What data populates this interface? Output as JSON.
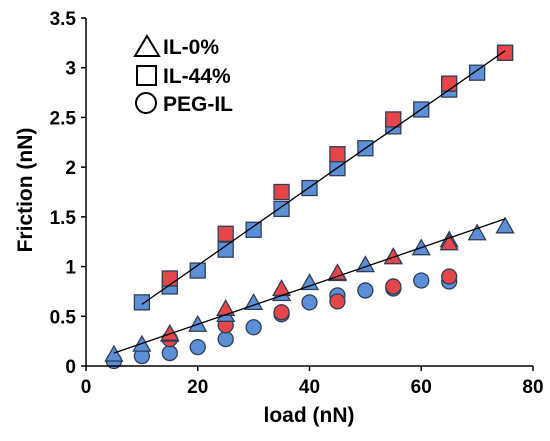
{
  "chart_data": {
    "type": "scatter",
    "xlabel": "load (nN)",
    "ylabel": "Friction (nN)",
    "xlim": [
      0,
      80
    ],
    "ylim": [
      0,
      3.5
    ],
    "xticks": [
      "0",
      "20",
      "40",
      "60",
      "80"
    ],
    "yticks": [
      "0",
      "0.5",
      "1",
      "1.5",
      "2",
      "2.5",
      "3",
      "3.5"
    ],
    "grid": false,
    "legend_position": "top-left",
    "legend": [
      {
        "label": "IL-0%",
        "marker": "triangle"
      },
      {
        "label": "IL-44%",
        "marker": "square"
      },
      {
        "label": "PEG-IL",
        "marker": "circle"
      }
    ],
    "colors": {
      "blue": "#5b8fd6",
      "red": "#e8454a",
      "edge": "#2f3d55"
    },
    "series": [
      {
        "marker": "square",
        "color": "blue",
        "x": [
          10,
          15,
          20,
          25,
          30,
          35,
          40,
          45,
          50,
          55,
          60,
          65,
          70,
          75
        ],
        "y": [
          0.64,
          0.8,
          0.96,
          1.17,
          1.37,
          1.58,
          1.79,
          1.99,
          2.19,
          2.41,
          2.58,
          2.78,
          2.95,
          3.15
        ]
      },
      {
        "marker": "square",
        "color": "red",
        "x": [
          15,
          25,
          35,
          45,
          55,
          65,
          75
        ],
        "y": [
          0.88,
          1.33,
          1.75,
          2.13,
          2.48,
          2.84,
          3.15
        ]
      },
      {
        "marker": "triangle",
        "color": "blue",
        "x": [
          5,
          10,
          15,
          20,
          25,
          30,
          35,
          40,
          45,
          50,
          55,
          60,
          65,
          70,
          75
        ],
        "y": [
          0.12,
          0.22,
          0.32,
          0.42,
          0.52,
          0.64,
          0.73,
          0.84,
          0.93,
          1.02,
          1.1,
          1.19,
          1.27,
          1.34,
          1.41
        ]
      },
      {
        "marker": "triangle",
        "color": "red",
        "x": [
          15,
          25,
          35,
          45,
          55,
          65
        ],
        "y": [
          0.33,
          0.58,
          0.78,
          0.94,
          1.1,
          1.24
        ]
      },
      {
        "marker": "circle",
        "color": "blue",
        "x": [
          5,
          10,
          15,
          20,
          25,
          30,
          35,
          40,
          45,
          50,
          55,
          60,
          65
        ],
        "y": [
          0.05,
          0.1,
          0.13,
          0.19,
          0.27,
          0.39,
          0.52,
          0.64,
          0.71,
          0.76,
          0.78,
          0.86,
          0.85
        ]
      },
      {
        "marker": "circle",
        "color": "red",
        "x": [
          15,
          25,
          35,
          45,
          55,
          65
        ],
        "y": [
          0.27,
          0.41,
          0.54,
          0.65,
          0.8,
          0.9
        ]
      }
    ],
    "trendlines": [
      {
        "x": [
          10,
          75
        ],
        "y": [
          0.62,
          3.17
        ]
      },
      {
        "x": [
          5,
          75
        ],
        "y": [
          0.13,
          1.48
        ]
      }
    ]
  }
}
